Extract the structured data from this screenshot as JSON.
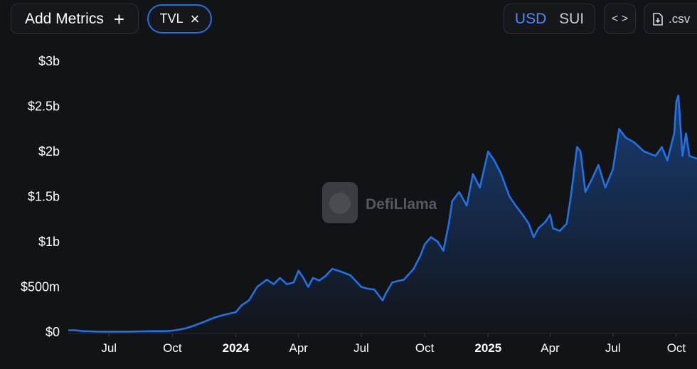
{
  "toolbar": {
    "add_metrics_label": "Add Metrics",
    "add_icon": "plus-icon",
    "metric_chip": {
      "label": "TVL",
      "remove_icon": "close-icon"
    },
    "denomination": {
      "options": [
        "USD",
        "SUI"
      ],
      "selected": "USD"
    },
    "embed_icon": "code-icon",
    "csv": {
      "label": ".csv",
      "icon": "file-download-icon"
    }
  },
  "watermark": {
    "text": "DefiLlama",
    "icon": "llama-logo-icon"
  },
  "colors": {
    "background": "#121317",
    "line": "#2172e5",
    "accent": "#4a8cff"
  },
  "chart_data": {
    "type": "area",
    "series": [
      {
        "values": []
      }
    ],
    "x_tick_labels": [
      "Jul",
      "Oct",
      "2024",
      "Apr",
      "Jul",
      "Oct",
      "2025",
      "Apr",
      "Jul",
      "Oct"
    ],
    "x_tick_dates": [
      "2023-07-01",
      "2023-10-01",
      "2024-01-01",
      "2024-04-01",
      "2024-07-01",
      "2024-10-01",
      "2025-01-01",
      "2025-04-01",
      "2025-07-01",
      "2025-10-01"
    ],
    "x_bold_labels": [
      "2024",
      "2025"
    ],
    "y_tick_labels": [
      "$0",
      "$500m",
      "$1b",
      "$1.5b",
      "$2b",
      "$2.5b",
      "$3b"
    ],
    "y_tick_values": [
      0,
      0.5,
      1,
      1.5,
      2,
      2.5,
      3
    ],
    "y_unit": "USD billions",
    "ylim": [
      0,
      3
    ],
    "xlim": [
      "2023-05-03",
      "2025-10-31"
    ],
    "grid": false,
    "points": [
      [
        "2023-05-03",
        0.02
      ],
      [
        "2023-05-12",
        0.02
      ],
      [
        "2023-05-25",
        0.01
      ],
      [
        "2023-06-15",
        0.005
      ],
      [
        "2023-07-01",
        0.003
      ],
      [
        "2023-08-01",
        0.005
      ],
      [
        "2023-09-01",
        0.01
      ],
      [
        "2023-09-20",
        0.01
      ],
      [
        "2023-10-01",
        0.015
      ],
      [
        "2023-10-20",
        0.04
      ],
      [
        "2023-11-01",
        0.07
      ],
      [
        "2023-11-15",
        0.11
      ],
      [
        "2023-12-01",
        0.16
      ],
      [
        "2023-12-10",
        0.18
      ],
      [
        "2023-12-20",
        0.2
      ],
      [
        "2024-01-01",
        0.22
      ],
      [
        "2024-01-10",
        0.3
      ],
      [
        "2024-01-20",
        0.35
      ],
      [
        "2024-02-01",
        0.5
      ],
      [
        "2024-02-15",
        0.58
      ],
      [
        "2024-02-25",
        0.53
      ],
      [
        "2024-03-05",
        0.6
      ],
      [
        "2024-03-15",
        0.53
      ],
      [
        "2024-03-25",
        0.55
      ],
      [
        "2024-04-01",
        0.68
      ],
      [
        "2024-04-08",
        0.6
      ],
      [
        "2024-04-15",
        0.5
      ],
      [
        "2024-04-22",
        0.6
      ],
      [
        "2024-05-01",
        0.57
      ],
      [
        "2024-05-10",
        0.62
      ],
      [
        "2024-05-20",
        0.7
      ],
      [
        "2024-06-01",
        0.67
      ],
      [
        "2024-06-15",
        0.63
      ],
      [
        "2024-06-25",
        0.55
      ],
      [
        "2024-07-01",
        0.5
      ],
      [
        "2024-07-10",
        0.48
      ],
      [
        "2024-07-20",
        0.47
      ],
      [
        "2024-08-01",
        0.35
      ],
      [
        "2024-08-05",
        0.42
      ],
      [
        "2024-08-15",
        0.55
      ],
      [
        "2024-09-01",
        0.58
      ],
      [
        "2024-09-15",
        0.7
      ],
      [
        "2024-09-25",
        0.85
      ],
      [
        "2024-10-01",
        0.97
      ],
      [
        "2024-10-10",
        1.05
      ],
      [
        "2024-10-20",
        1.0
      ],
      [
        "2024-10-28",
        0.9
      ],
      [
        "2024-11-05",
        1.2
      ],
      [
        "2024-11-10",
        1.45
      ],
      [
        "2024-11-20",
        1.55
      ],
      [
        "2024-12-01",
        1.4
      ],
      [
        "2024-12-10",
        1.75
      ],
      [
        "2024-12-20",
        1.6
      ],
      [
        "2025-01-01",
        2.0
      ],
      [
        "2025-01-10",
        1.9
      ],
      [
        "2025-01-20",
        1.75
      ],
      [
        "2025-02-01",
        1.5
      ],
      [
        "2025-02-10",
        1.4
      ],
      [
        "2025-02-20",
        1.3
      ],
      [
        "2025-03-01",
        1.2
      ],
      [
        "2025-03-08",
        1.05
      ],
      [
        "2025-03-15",
        1.15
      ],
      [
        "2025-03-25",
        1.22
      ],
      [
        "2025-04-01",
        1.3
      ],
      [
        "2025-04-05",
        1.15
      ],
      [
        "2025-04-15",
        1.12
      ],
      [
        "2025-04-25",
        1.2
      ],
      [
        "2025-05-01",
        1.5
      ],
      [
        "2025-05-10",
        2.05
      ],
      [
        "2025-05-15",
        2.0
      ],
      [
        "2025-05-22",
        1.55
      ],
      [
        "2025-06-01",
        1.7
      ],
      [
        "2025-06-10",
        1.85
      ],
      [
        "2025-06-20",
        1.6
      ],
      [
        "2025-07-01",
        1.8
      ],
      [
        "2025-07-10",
        2.25
      ],
      [
        "2025-07-20",
        2.15
      ],
      [
        "2025-08-01",
        2.1
      ],
      [
        "2025-08-15",
        2.0
      ],
      [
        "2025-09-01",
        1.95
      ],
      [
        "2025-09-10",
        2.05
      ],
      [
        "2025-09-18",
        1.9
      ],
      [
        "2025-09-28",
        2.2
      ],
      [
        "2025-10-01",
        2.55
      ],
      [
        "2025-10-04",
        2.62
      ],
      [
        "2025-10-10",
        1.95
      ],
      [
        "2025-10-15",
        2.2
      ],
      [
        "2025-10-20",
        1.95
      ],
      [
        "2025-10-31",
        1.92
      ]
    ]
  }
}
